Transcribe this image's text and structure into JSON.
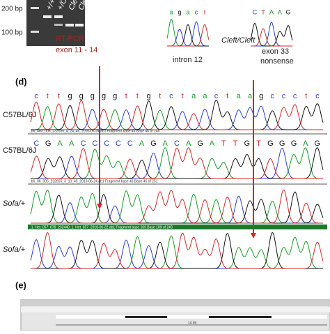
{
  "panel_c": {
    "gel": {
      "markers": [
        "200 bp",
        "100 bp"
      ],
      "lanes": [
        "+/+",
        "+/Cleft",
        "Cleft",
        "Cleft"
      ],
      "method": "RT-PCR",
      "region": "exon 11 - 14"
    },
    "trace_left": {
      "bases": [
        "a",
        "g",
        "a",
        "c",
        "t"
      ],
      "label": "intron 12"
    },
    "trace_right": {
      "bases": [
        "C",
        "T",
        "A",
        "A",
        "G"
      ],
      "label_line1": "exon 33",
      "label_line2": "nonsense"
    },
    "genotype": "Cleft/Cleft"
  },
  "panel_d": {
    "label": "(d)",
    "rows": [
      {
        "label": "C57BL/6J",
        "bases": [
          "c",
          "t",
          "t",
          "g",
          "g",
          "g",
          "g",
          "g",
          "t",
          "t",
          "g",
          "t",
          "c",
          "t",
          "a",
          "a",
          "c",
          "t",
          "a",
          "a",
          "g",
          "c",
          "c",
          "c",
          "t",
          "c"
        ],
        "file": "_b6_480_006_232655_4_24_46_2010-06-24.ab1 Fragment base 46 Base 46 of 246"
      },
      {
        "label": "C57BL/6J",
        "bases": [
          "C",
          "G",
          "A",
          "A",
          "C",
          "C",
          "C",
          "C",
          "C",
          "A",
          "G",
          "A",
          "C",
          "A",
          "G",
          "A",
          "T",
          "T",
          "G",
          "T",
          "G",
          "G",
          "G",
          "A",
          "G"
        ],
        "file": "_b6_06_005_232655_3_10_45_2010-06-24.ab1 Fragment base 43 Base 45 of 251"
      },
      {
        "label": "Sofa/+",
        "file": "_1_Het_057_078_232440_1_Het_657_2010-06-22.ab1 Fragment base 109 Base 109 of 249"
      },
      {
        "label": "Sofa/+"
      }
    ]
  },
  "panel_e": {
    "label": "(e)",
    "scale": "14 kb"
  }
}
